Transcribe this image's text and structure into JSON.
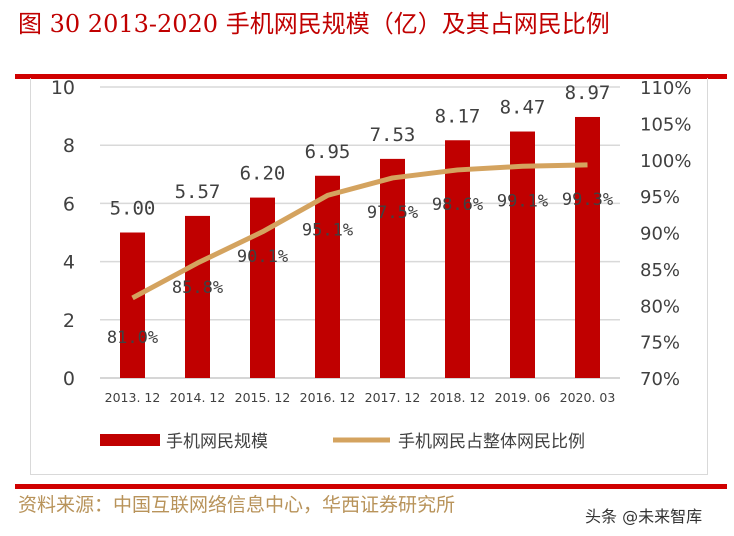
{
  "title": "图 30 2013-2020 手机网民规模（亿）及其占网民比例",
  "source": "资料来源：中国互联网络信息中心，华西证券研究所",
  "watermark": "头条 @未来智库",
  "colors": {
    "bar": "#c00000",
    "line": "#d4a35f",
    "title": "#c00000",
    "source": "#b8935a"
  },
  "chart_data": {
    "type": "bar+line",
    "categories": [
      "2013. 12",
      "2014. 12",
      "2015. 12",
      "2016. 12",
      "2017. 12",
      "2018. 12",
      "2019. 06",
      "2020. 03"
    ],
    "series": [
      {
        "name": "手机网民规模",
        "type": "bar",
        "axis": "left",
        "values": [
          5.0,
          5.57,
          6.2,
          6.95,
          7.53,
          8.17,
          8.47,
          8.97
        ],
        "labels": [
          "5.00",
          "5.57",
          "6.20",
          "6.95",
          "7.53",
          "8.17",
          "8.47",
          "8.97"
        ]
      },
      {
        "name": "手机网民占整体网民比例",
        "type": "line",
        "axis": "right",
        "values": [
          81.0,
          85.8,
          90.1,
          95.1,
          97.5,
          98.6,
          99.1,
          99.3
        ],
        "labels": [
          "81.0%",
          "85.8%",
          "90.1%",
          "95.1%",
          "97.5%",
          "98.6%",
          "99.1%",
          "99.3%"
        ]
      }
    ],
    "left_axis": {
      "ylim": [
        0,
        10
      ],
      "ticks": [
        "0",
        "2",
        "4",
        "6",
        "8",
        "10"
      ]
    },
    "right_axis": {
      "ylim": [
        70,
        110
      ],
      "ticks": [
        "70%",
        "75%",
        "80%",
        "85%",
        "90%",
        "95%",
        "100%",
        "105%",
        "110%"
      ]
    },
    "grid": true,
    "legend": "bottom"
  }
}
